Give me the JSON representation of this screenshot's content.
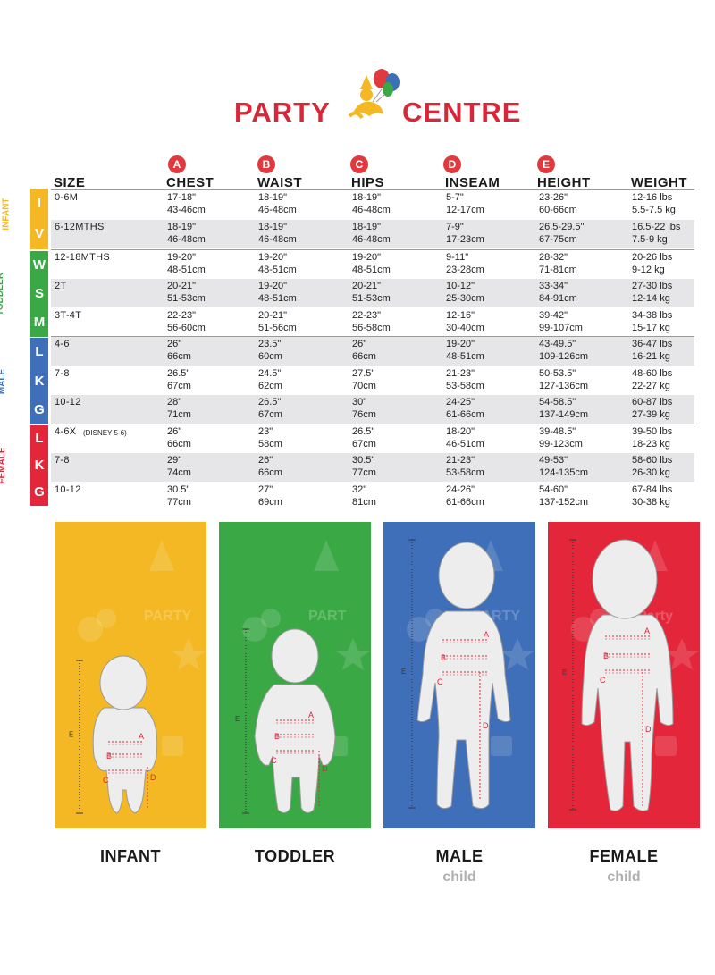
{
  "brand": {
    "name_left": "PARTY",
    "name_right": "CENTRE"
  },
  "columns": [
    {
      "letter": "",
      "label": "SIZE"
    },
    {
      "letter": "A",
      "label": "CHEST"
    },
    {
      "letter": "B",
      "label": "WAIST"
    },
    {
      "letter": "C",
      "label": "HIPS"
    },
    {
      "letter": "D",
      "label": "INSEAM"
    },
    {
      "letter": "E",
      "label": "HEIGHT"
    },
    {
      "letter": "",
      "label": "WEIGHT"
    }
  ],
  "rows": [
    {
      "size": "0-6M",
      "chest": "17-18\"\n43-46cm",
      "waist": "18-19\"\n46-48cm",
      "hips": "18-19\"\n46-48cm",
      "inseam": "5-7\"\n12-17cm",
      "height": "23-26\"\n60-66cm",
      "weight": "12-16 lbs\n5.5-7.5 kg"
    },
    {
      "size": "6-12MTHS",
      "chest": "18-19\"\n46-48cm",
      "waist": "18-19\"\n46-48cm",
      "hips": "18-19\"\n46-48cm",
      "inseam": "7-9\"\n17-23cm",
      "height": "26.5-29.5\"\n67-75cm",
      "weight": "16.5-22 lbs\n7.5-9 kg"
    },
    {
      "size": "12-18MTHS",
      "chest": "19-20\"\n48-51cm",
      "waist": "19-20\"\n48-51cm",
      "hips": "19-20\"\n48-51cm",
      "inseam": "9-11\"\n23-28cm",
      "height": "28-32\"\n71-81cm",
      "weight": "20-26 lbs\n9-12 kg"
    },
    {
      "size": "2T",
      "chest": "20-21\"\n51-53cm",
      "waist": "19-20\"\n48-51cm",
      "hips": "20-21\"\n51-53cm",
      "inseam": "10-12\"\n25-30cm",
      "height": "33-34\"\n84-91cm",
      "weight": "27-30 lbs\n12-14 kg"
    },
    {
      "size": "3T-4T",
      "chest": "22-23\"\n56-60cm",
      "waist": "20-21\"\n51-56cm",
      "hips": "22-23\"\n56-58cm",
      "inseam": "12-16\"\n30-40cm",
      "height": "39-42\"\n99-107cm",
      "weight": "34-38 lbs\n15-17 kg"
    },
    {
      "size": "4-6",
      "chest": "26\"\n66cm",
      "waist": "23.5\"\n60cm",
      "hips": "26\"\n66cm",
      "inseam": "19-20\"\n48-51cm",
      "height": "43-49.5\"\n109-126cm",
      "weight": "36-47 lbs\n16-21 kg"
    },
    {
      "size": "7-8",
      "chest": "26.5\"\n67cm",
      "waist": "24.5\"\n62cm",
      "hips": "27.5\"\n70cm",
      "inseam": "21-23\"\n53-58cm",
      "height": "50-53.5\"\n127-136cm",
      "weight": "48-60 lbs\n22-27 kg"
    },
    {
      "size": "10-12",
      "chest": "28\"\n71cm",
      "waist": "26.5\"\n67cm",
      "hips": "30\"\n76cm",
      "inseam": "24-25\"\n61-66cm",
      "height": "54-58.5\"\n137-149cm",
      "weight": "60-87 lbs\n27-39 kg"
    },
    {
      "size": "4-6X",
      "size_note": "(DISNEY 5-6)",
      "chest": "26\"\n66cm",
      "waist": "23\"\n58cm",
      "hips": "26.5\"\n67cm",
      "inseam": "18-20\"\n46-51cm",
      "height": "39-48.5\"\n99-123cm",
      "weight": "39-50 lbs\n18-23 kg"
    },
    {
      "size": "7-8",
      "chest": "29\"\n74cm",
      "waist": "26\"\n66cm",
      "hips": "30.5\"\n77cm",
      "inseam": "21-23\"\n53-58cm",
      "height": "49-53\"\n124-135cm",
      "weight": "58-60 lbs\n26-30 kg"
    },
    {
      "size": "10-12",
      "chest": "30.5\"\n77cm",
      "waist": "27\"\n69cm",
      "hips": "32\"\n81cm",
      "inseam": "24-26\"\n61-66cm",
      "height": "54-60\"\n137-152cm",
      "weight": "67-84 lbs\n30-38 kg"
    }
  ],
  "groups": [
    {
      "label": "INFANT",
      "color": "#f3b823",
      "letters": [
        "I",
        "V"
      ]
    },
    {
      "label": "INFANT /\nTODDLER",
      "color": "#3aa845",
      "letters": [
        "W",
        "S",
        "M"
      ]
    },
    {
      "label": "CHILD\nMALE",
      "color": "#3f6fb8",
      "letters": [
        "L",
        "K",
        "G"
      ]
    },
    {
      "label": "CHILD\nFEMALE",
      "color": "#e3263a",
      "letters": [
        "L",
        "K",
        "G"
      ]
    }
  ],
  "panels": [
    {
      "title": "INFANT",
      "subtitle": "",
      "color": "#f3b823",
      "watermark": "PARTY"
    },
    {
      "title": "TODDLER",
      "subtitle": "",
      "color": "#3aa845",
      "watermark": "PART"
    },
    {
      "title": "MALE",
      "subtitle": "child",
      "color": "#3f6fb8",
      "watermark": "PARTY"
    },
    {
      "title": "FEMALE",
      "subtitle": "child",
      "color": "#e3263a",
      "watermark": "Party"
    }
  ],
  "figure_letters": {
    "chest": "A",
    "waist": "B",
    "hips": "C",
    "inseam": "D",
    "height": "E"
  },
  "colors": {
    "accent_red": "#d9273a",
    "row_shade": "#e6e6e8"
  }
}
